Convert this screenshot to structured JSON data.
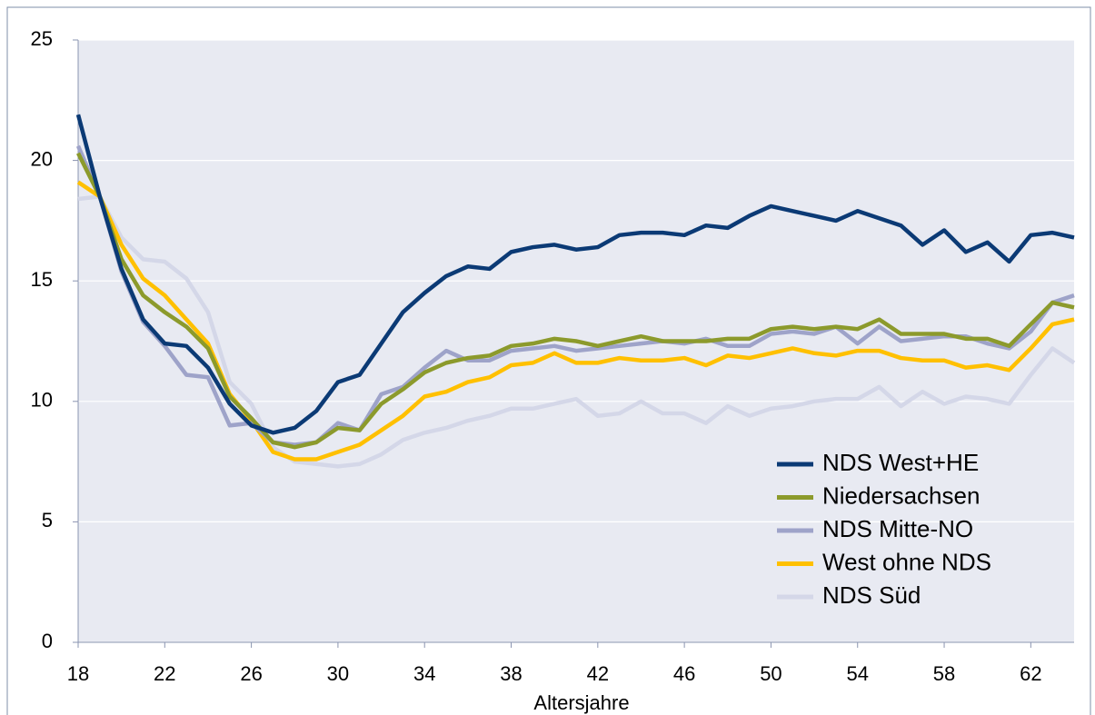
{
  "chart_data": {
    "type": "line",
    "x_label": "Altersjahre",
    "x": [
      18,
      19,
      20,
      21,
      22,
      23,
      24,
      25,
      26,
      27,
      28,
      29,
      30,
      31,
      32,
      33,
      34,
      35,
      36,
      37,
      38,
      39,
      40,
      41,
      42,
      43,
      44,
      45,
      46,
      47,
      48,
      49,
      50,
      51,
      52,
      53,
      54,
      55,
      56,
      57,
      58,
      59,
      60,
      61,
      62,
      63,
      64
    ],
    "xlim": [
      18,
      64
    ],
    "xticks": [
      18,
      22,
      26,
      30,
      34,
      38,
      42,
      46,
      50,
      54,
      58,
      62
    ],
    "ylim": [
      0,
      25
    ],
    "yticks": [
      0,
      5,
      10,
      15,
      20,
      25
    ],
    "grid": true,
    "legend": "lower right",
    "series": [
      {
        "name": "NDS West+HE",
        "color": "#0b3a75",
        "values": [
          21.9,
          18.5,
          15.5,
          13.4,
          12.4,
          12.3,
          11.4,
          9.9,
          9.0,
          8.7,
          8.9,
          9.6,
          10.8,
          11.1,
          12.4,
          13.7,
          14.5,
          15.2,
          15.6,
          15.5,
          16.2,
          16.4,
          16.5,
          16.3,
          16.4,
          16.9,
          17.0,
          17.0,
          16.9,
          17.3,
          17.2,
          17.7,
          18.1,
          17.9,
          17.7,
          17.5,
          17.9,
          17.6,
          17.3,
          16.5,
          17.1,
          16.2,
          16.6,
          15.8,
          16.9,
          17.0,
          16.8
        ]
      },
      {
        "name": "Niedersachsen",
        "color": "#8c9a2c",
        "values": [
          20.3,
          18.5,
          15.9,
          14.4,
          13.7,
          13.1,
          12.2,
          10.2,
          9.3,
          8.3,
          8.1,
          8.3,
          8.9,
          8.8,
          9.9,
          10.5,
          11.2,
          11.6,
          11.8,
          11.9,
          12.3,
          12.4,
          12.6,
          12.5,
          12.3,
          12.5,
          12.7,
          12.5,
          12.5,
          12.5,
          12.6,
          12.6,
          13.0,
          13.1,
          13.0,
          13.1,
          13.0,
          13.4,
          12.8,
          12.8,
          12.8,
          12.6,
          12.6,
          12.3,
          13.2,
          14.1,
          13.9
        ]
      },
      {
        "name": "NDS Mitte-NO",
        "color": "#9ea3c9",
        "values": [
          20.6,
          18.5,
          15.4,
          13.3,
          12.3,
          11.1,
          11.0,
          9.0,
          9.1,
          8.3,
          8.2,
          8.3,
          9.1,
          8.8,
          10.3,
          10.6,
          11.4,
          12.1,
          11.7,
          11.7,
          12.1,
          12.2,
          12.3,
          12.1,
          12.2,
          12.3,
          12.4,
          12.5,
          12.4,
          12.6,
          12.3,
          12.3,
          12.8,
          12.9,
          12.8,
          13.1,
          12.4,
          13.1,
          12.5,
          12.6,
          12.7,
          12.7,
          12.4,
          12.2,
          12.9,
          14.1,
          14.4
        ]
      },
      {
        "name": "West ohne NDS",
        "color": "#ffc000",
        "values": [
          19.1,
          18.5,
          16.5,
          15.1,
          14.4,
          13.4,
          12.4,
          10.3,
          9.2,
          7.9,
          7.6,
          7.6,
          7.9,
          8.2,
          8.8,
          9.4,
          10.2,
          10.4,
          10.8,
          11.0,
          11.5,
          11.6,
          12.0,
          11.6,
          11.6,
          11.8,
          11.7,
          11.7,
          11.8,
          11.5,
          11.9,
          11.8,
          12.0,
          12.2,
          12.0,
          11.9,
          12.1,
          12.1,
          11.8,
          11.7,
          11.7,
          11.4,
          11.5,
          11.3,
          12.2,
          13.2,
          13.4
        ]
      },
      {
        "name": "NDS Süd",
        "color": "#d4d7e8",
        "values": [
          18.4,
          18.5,
          16.8,
          15.9,
          15.8,
          15.1,
          13.7,
          10.8,
          9.9,
          8.1,
          7.5,
          7.4,
          7.3,
          7.4,
          7.8,
          8.4,
          8.7,
          8.9,
          9.2,
          9.4,
          9.7,
          9.7,
          9.9,
          10.1,
          9.4,
          9.5,
          10.0,
          9.5,
          9.5,
          9.1,
          9.8,
          9.4,
          9.7,
          9.8,
          10.0,
          10.1,
          10.1,
          10.6,
          9.8,
          10.4,
          9.9,
          10.2,
          10.1,
          9.9,
          11.1,
          12.2,
          11.6
        ]
      }
    ]
  }
}
